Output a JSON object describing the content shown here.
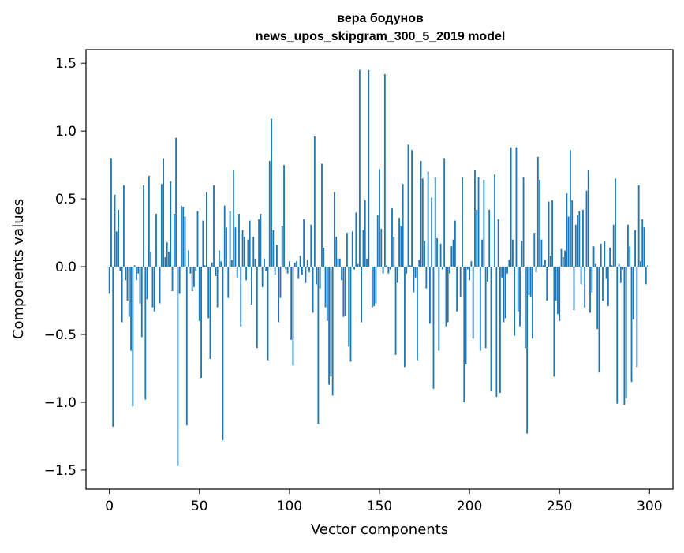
{
  "chart_data": {
    "type": "bar",
    "title": "вера бодунов",
    "subtitle": "news_upos_skipgram_300_5_2019 model",
    "xlabel": "Vector components",
    "ylabel": "Components values",
    "xlim": [
      -13,
      313
    ],
    "ylim": [
      -1.64,
      1.6
    ],
    "xticks": [
      0,
      50,
      100,
      150,
      200,
      250,
      300
    ],
    "xtick_labels": [
      "0",
      "50",
      "100",
      "150",
      "200",
      "250",
      "300"
    ],
    "yticks": [
      1.5,
      1.0,
      0.5,
      0.0,
      -0.5,
      -1.0,
      -1.5
    ],
    "ytick_labels": [
      "1.5",
      "1.0",
      "0.5",
      "0.0",
      "−0.5",
      "−1.0",
      "−1.5"
    ],
    "grid": false,
    "legend": "none",
    "bar_color": "#1f77b4",
    "x": [
      0,
      1,
      2,
      3,
      4,
      5,
      6,
      7,
      8,
      9,
      10,
      11,
      12,
      13,
      14,
      15,
      16,
      17,
      18,
      19,
      20,
      21,
      22,
      23,
      24,
      25,
      26,
      27,
      28,
      29,
      30,
      31,
      32,
      33,
      34,
      35,
      36,
      37,
      38,
      39,
      40,
      41,
      42,
      43,
      44,
      45,
      46,
      47,
      48,
      49,
      50,
      51,
      52,
      53,
      54,
      55,
      56,
      57,
      58,
      59,
      60,
      61,
      62,
      63,
      64,
      65,
      66,
      67,
      68,
      69,
      70,
      71,
      72,
      73,
      74,
      75,
      76,
      77,
      78,
      79,
      80,
      81,
      82,
      83,
      84,
      85,
      86,
      87,
      88,
      89,
      90,
      91,
      92,
      93,
      94,
      95,
      96,
      97,
      98,
      99,
      100,
      101,
      102,
      103,
      104,
      105,
      106,
      107,
      108,
      109,
      110,
      111,
      112,
      113,
      114,
      115,
      116,
      117,
      118,
      119,
      120,
      121,
      122,
      123,
      124,
      125,
      126,
      127,
      128,
      129,
      130,
      131,
      132,
      133,
      134,
      135,
      136,
      137,
      138,
      139,
      140,
      141,
      142,
      143,
      144,
      145,
      146,
      147,
      148,
      149,
      150,
      151,
      152,
      153,
      154,
      155,
      156,
      157,
      158,
      159,
      160,
      161,
      162,
      163,
      164,
      165,
      166,
      167,
      168,
      169,
      170,
      171,
      172,
      173,
      174,
      175,
      176,
      177,
      178,
      179,
      180,
      181,
      182,
      183,
      184,
      185,
      186,
      187,
      188,
      189,
      190,
      191,
      192,
      193,
      194,
      195,
      196,
      197,
      198,
      199,
      200,
      201,
      202,
      203,
      204,
      205,
      206,
      207,
      208,
      209,
      210,
      211,
      212,
      213,
      214,
      215,
      216,
      217,
      218,
      219,
      220,
      221,
      222,
      223,
      224,
      225,
      226,
      227,
      228,
      229,
      230,
      231,
      232,
      233,
      234,
      235,
      236,
      237,
      238,
      239,
      240,
      241,
      242,
      243,
      244,
      245,
      246,
      247,
      248,
      249,
      250,
      251,
      252,
      253,
      254,
      255,
      256,
      257,
      258,
      259,
      260,
      261,
      262,
      263,
      264,
      265,
      266,
      267,
      268,
      269,
      270,
      271,
      272,
      273,
      274,
      275,
      276,
      277,
      278,
      279,
      280,
      281,
      282,
      283,
      284,
      285,
      286,
      287,
      288,
      289,
      290,
      291,
      292,
      293,
      294,
      295,
      296,
      297,
      298,
      299
    ],
    "values": [
      -0.2,
      0.8,
      -1.18,
      0.53,
      0.26,
      0.42,
      -0.03,
      -0.41,
      0.6,
      -0.1,
      -0.25,
      -0.37,
      -0.62,
      -1.03,
      0.01,
      -0.1,
      -0.05,
      -0.27,
      -0.52,
      0.6,
      -0.98,
      -0.24,
      0.67,
      0.11,
      -0.3,
      -0.33,
      0.39,
      0.0,
      -0.27,
      0.61,
      0.8,
      0.07,
      0.18,
      0.11,
      0.63,
      -0.18,
      0.39,
      0.95,
      -1.47,
      -0.2,
      0.45,
      0.44,
      0.37,
      -1.17,
      0.12,
      -0.05,
      -0.18,
      -0.15,
      -0.03,
      0.41,
      -0.4,
      -0.82,
      0.34,
      0.01,
      0.55,
      -0.38,
      -0.68,
      0.03,
      0.6,
      -0.07,
      -0.3,
      0.12,
      0.04,
      -1.28,
      0.45,
      0.29,
      -0.23,
      0.41,
      0.05,
      0.71,
      0.29,
      -0.08,
      0.39,
      -0.44,
      0.27,
      0.22,
      -0.1,
      0.2,
      0.34,
      -0.28,
      0.22,
      0.06,
      -0.6,
      0.35,
      0.39,
      -0.15,
      0.06,
      -0.03,
      -0.69,
      0.78,
      1.09,
      0.27,
      -0.06,
      0.16,
      -0.41,
      -0.23,
      0.3,
      0.75,
      -0.02,
      -0.05,
      0.04,
      -0.54,
      -0.73,
      0.03,
      0.04,
      -0.09,
      0.08,
      -0.06,
      0.35,
      -0.12,
      0.05,
      -0.04,
      0.31,
      -0.34,
      0.96,
      -0.13,
      -1.16,
      -0.16,
      0.76,
      0.14,
      -0.3,
      -0.4,
      -0.87,
      -0.81,
      -0.95,
      0.55,
      0.22,
      0.06,
      0.06,
      -0.1,
      -0.37,
      -0.36,
      0.25,
      -0.59,
      -0.7,
      0.26,
      -0.02,
      0.4,
      0.02,
      1.45,
      -0.41,
      0.27,
      0.49,
      0.06,
      1.45,
      0.0,
      -0.3,
      -0.29,
      -0.27,
      0.38,
      0.72,
      0.28,
      -0.05,
      1.42,
      0.01,
      -0.05,
      -0.02,
      0.43,
      0.22,
      -0.65,
      -0.12,
      0.36,
      0.3,
      0.61,
      -0.74,
      -0.05,
      0.9,
      0.01,
      0.86,
      -0.19,
      -0.08,
      -0.69,
      0.05,
      0.78,
      0.65,
      0.19,
      -0.16,
      0.7,
      -0.42,
      0.51,
      -0.9,
      0.66,
      0.21,
      -0.62,
      0.17,
      -0.02,
      0.8,
      -0.44,
      -0.41,
      -0.05,
      0.15,
      0.2,
      0.34,
      -0.33,
      0.0,
      -0.22,
      0.66,
      -1.0,
      -0.72,
      -0.02,
      -0.1,
      0.04,
      -0.53,
      0.71,
      0.42,
      0.66,
      -0.62,
      0.2,
      0.64,
      -0.6,
      -0.11,
      0.42,
      -0.92,
      0.0,
      0.68,
      -0.96,
      0.35,
      -0.93,
      -0.08,
      -0.41,
      -0.38,
      -0.05,
      0.05,
      0.88,
      0.2,
      -0.51,
      0.88,
      -0.33,
      -0.44,
      0.19,
      0.66,
      -0.6,
      -1.23,
      -0.21,
      -0.22,
      -0.53,
      0.25,
      -0.04,
      0.81,
      0.64,
      0.2,
      0.01,
      0.05,
      -0.25,
      0.48,
      0.08,
      0.49,
      -0.81,
      -0.25,
      -0.35,
      -0.4,
      0.13,
      0.07,
      0.12,
      0.54,
      0.37,
      0.86,
      0.49,
      -0.32,
      0.31,
      0.38,
      0.41,
      -0.13,
      0.42,
      -0.3,
      0.56,
      0.71,
      -0.34,
      -0.19,
      0.15,
      0.02,
      -0.46,
      -0.78,
      0.17,
      -0.25,
      0.19,
      -0.09,
      -0.29,
      0.14,
      0.01,
      0.31,
      0.65,
      -1.01,
      0.02,
      -0.12,
      -0.02,
      -1.02,
      -0.97,
      0.31,
      0.15,
      -0.85,
      -0.39,
      0.27,
      -0.74,
      0.6,
      0.04,
      0.35,
      0.29,
      -0.13,
      0.01
    ]
  }
}
